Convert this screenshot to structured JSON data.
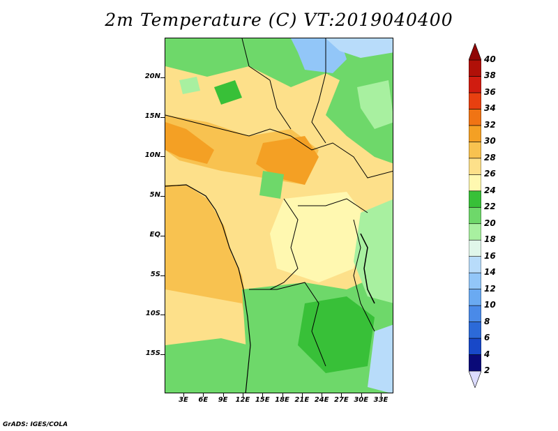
{
  "title": "2m Temperature (C) VT:2019040400",
  "credit": "GrADS: IGES/COLA",
  "axes": {
    "lat_ticks": [
      "20N",
      "15N",
      "10N",
      "5N",
      "EQ",
      "5S",
      "10S",
      "15S"
    ],
    "lon_ticks": [
      "3E",
      "6E",
      "9E",
      "12E",
      "15E",
      "18E",
      "21E",
      "24E",
      "27E",
      "30E",
      "33E"
    ]
  },
  "colorbar": {
    "labels": [
      "2",
      "4",
      "6",
      "8",
      "10",
      "12",
      "14",
      "16",
      "18",
      "20",
      "22",
      "24",
      "26",
      "28",
      "30",
      "32",
      "34",
      "36",
      "38",
      "40"
    ],
    "colors": [
      "#dcdcff",
      "#0a0a78",
      "#1848c8",
      "#2c6ad8",
      "#4a8ae8",
      "#6aaaf2",
      "#92c6f8",
      "#b8dcfa",
      "#e0f6ea",
      "#a8f0a0",
      "#6ed86a",
      "#38c038",
      "#fff8b0",
      "#fde08a",
      "#f8c250",
      "#f4a024",
      "#f07414",
      "#e84010",
      "#d01c10",
      "#b01008",
      "#900606"
    ]
  }
}
